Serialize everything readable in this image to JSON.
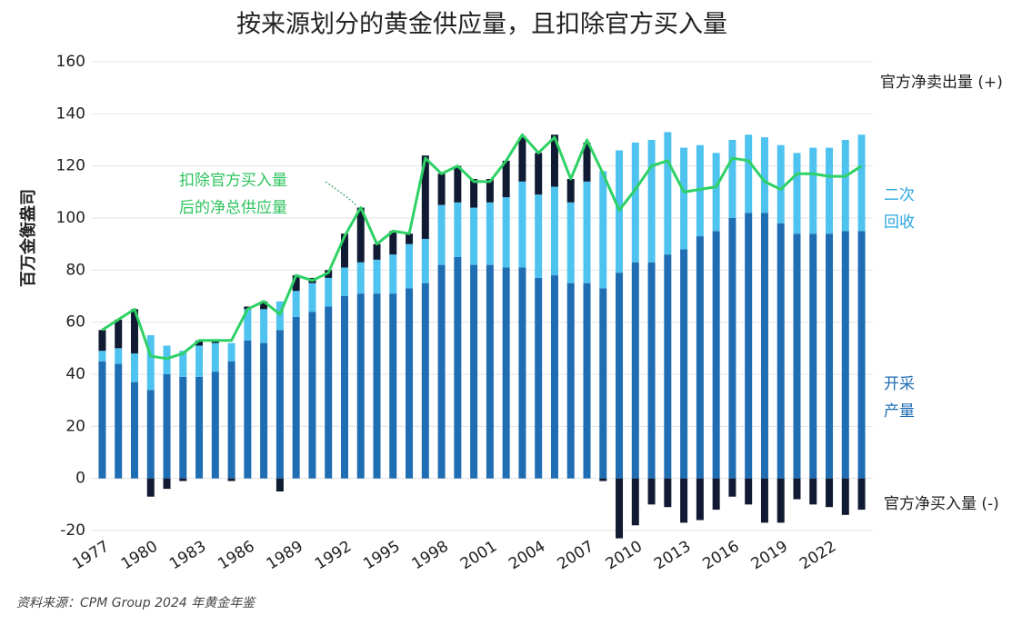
{
  "chart_data": {
    "type": "bar",
    "title": "按来源划分的黄金供应量，且扣除官方买入量",
    "y_label": "百万金衡盎司",
    "source": "资料来源：CPM Group 2024 年黄金年鉴",
    "x": [
      1977,
      1978,
      1979,
      1980,
      1981,
      1982,
      1983,
      1984,
      1985,
      1986,
      1987,
      1988,
      1989,
      1990,
      1991,
      1992,
      1993,
      1994,
      1995,
      1996,
      1997,
      1998,
      1999,
      2000,
      2001,
      2002,
      2003,
      2004,
      2005,
      2006,
      2007,
      2008,
      2009,
      2010,
      2011,
      2012,
      2013,
      2014,
      2015,
      2016,
      2017,
      2018,
      2019,
      2020,
      2021,
      2022,
      2023,
      2024
    ],
    "xlim": [
      1976.3,
      2024.7
    ],
    "xticks": [
      1977,
      1980,
      1983,
      1986,
      1989,
      1992,
      1995,
      1998,
      2001,
      2004,
      2007,
      2010,
      2013,
      2016,
      2019,
      2022
    ],
    "ylim": [
      -20,
      160
    ],
    "yticks": [
      -20,
      0,
      20,
      40,
      60,
      80,
      100,
      120,
      140,
      160
    ],
    "grid": true,
    "series": [
      {
        "name": "开采产量",
        "color": "#1f6db3",
        "values": [
          45,
          44,
          37,
          34,
          40,
          39,
          39,
          41,
          45,
          53,
          52,
          57,
          62,
          64,
          66,
          70,
          71,
          71,
          71,
          73,
          75,
          82,
          85,
          82,
          82,
          81,
          81,
          77,
          78,
          75,
          75,
          73,
          79,
          83,
          83,
          86,
          88,
          93,
          95,
          100,
          102,
          102,
          98,
          94,
          94,
          94,
          95,
          95
        ]
      },
      {
        "name": "二次回收",
        "color": "#4ec3f0",
        "values": [
          4,
          6,
          11,
          21,
          11,
          10,
          12,
          11,
          7,
          12,
          13,
          11,
          10,
          11,
          11,
          11,
          12,
          13,
          15,
          17,
          17,
          23,
          21,
          22,
          24,
          27,
          33,
          32,
          34,
          31,
          39,
          45,
          47,
          46,
          47,
          47,
          39,
          35,
          30,
          30,
          30,
          29,
          30,
          31,
          33,
          33,
          35,
          37
        ]
      },
      {
        "name": "官方净卖出量 (+)",
        "color": "#101b33",
        "values": [
          8,
          11,
          17,
          -7,
          -4,
          -1,
          2,
          1,
          -1,
          1,
          3,
          -5,
          6,
          2,
          3,
          13,
          21,
          6,
          9,
          4,
          32,
          12,
          14,
          11,
          9,
          14,
          17,
          16,
          20,
          9,
          15,
          -1,
          -23,
          -18,
          -10,
          -11,
          -17,
          -16,
          -12,
          -7,
          -10,
          -17,
          -17,
          -8,
          -10,
          -11,
          -14,
          -12
        ]
      },
      {
        "name": "扣除官方买入量后的净总供应量",
        "color": "#2ed165",
        "type": "line",
        "values": [
          57,
          61,
          65,
          47,
          46,
          48,
          53,
          53,
          53,
          65,
          68,
          63,
          78,
          76,
          79,
          93,
          104,
          90,
          95,
          94,
          123,
          117,
          120,
          114,
          114,
          122,
          132,
          125,
          131,
          115,
          130,
          117,
          103,
          111,
          120,
          122,
          110,
          111,
          112,
          123,
          122,
          114,
          111,
          117,
          117,
          116,
          116,
          120
        ]
      }
    ],
    "annotations": [
      "官方净买入量 (-)"
    ]
  }
}
